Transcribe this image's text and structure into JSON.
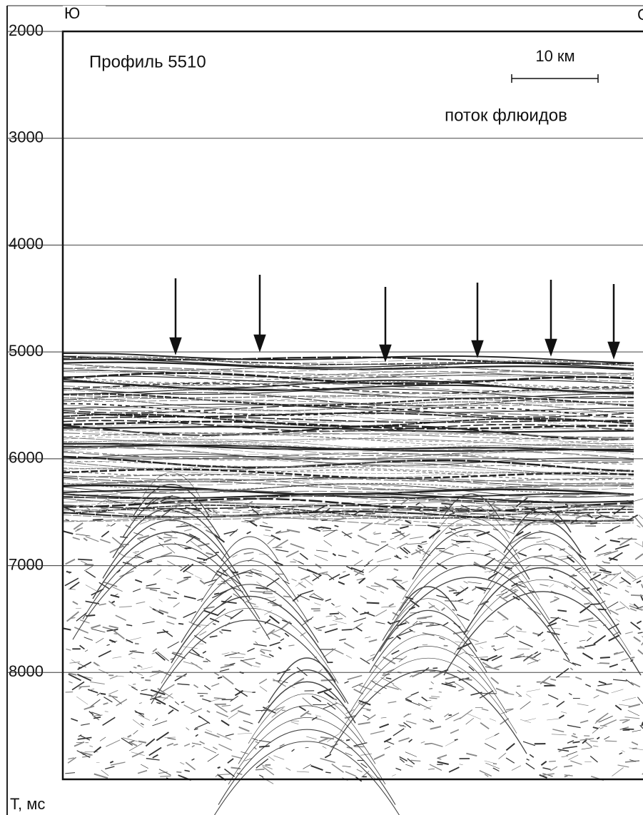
{
  "chart_data": {
    "type": "seismic-section",
    "title": "Профиль 5510",
    "direction_left": "Ю",
    "direction_right": "С",
    "scale_label": "10 км",
    "annotation": "поток флюидов",
    "y_label": "Т, мс",
    "ylim": [
      2000,
      9000
    ],
    "y_inverted": true,
    "yticks": [
      2000,
      3000,
      4000,
      5000,
      6000,
      7000,
      8000
    ],
    "grid": true
  }
}
